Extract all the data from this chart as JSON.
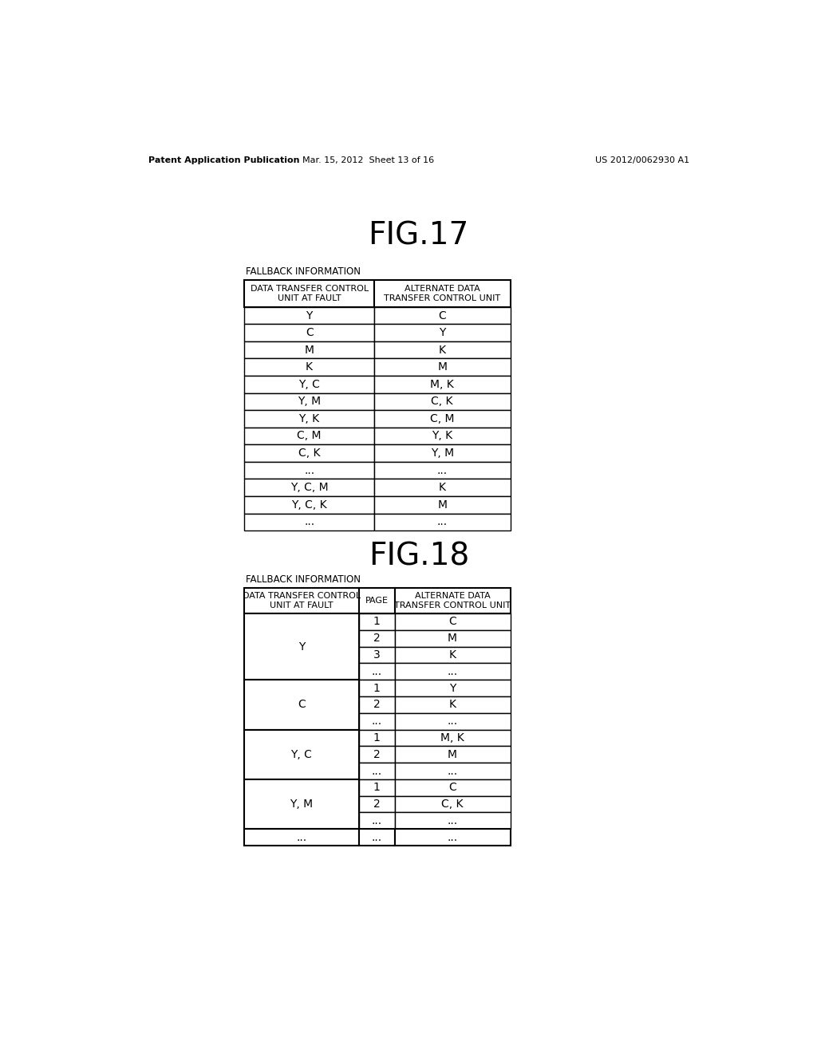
{
  "header_text_left": "Patent Application Publication",
  "header_text_mid": "Mar. 15, 2012  Sheet 13 of 16",
  "header_text_right": "US 2012/0062930 A1",
  "fig17_title": "FIG.17",
  "fig18_title": "FIG.18",
  "fallback_label": "FALLBACK INFORMATION",
  "fig17_col1_header": "DATA TRANSFER CONTROL\nUNIT AT FAULT",
  "fig17_col2_header": "ALTERNATE DATA\nTRANSFER CONTROL UNIT",
  "fig17_rows": [
    [
      "Y",
      "C"
    ],
    [
      "C",
      "Y"
    ],
    [
      "M",
      "K"
    ],
    [
      "K",
      "M"
    ],
    [
      "Y, C",
      "M, K"
    ],
    [
      "Y, M",
      "C, K"
    ],
    [
      "Y, K",
      "C, M"
    ],
    [
      "C, M",
      "Y, K"
    ],
    [
      "C, K",
      "Y, M"
    ],
    [
      "...",
      "..."
    ],
    [
      "Y, C, M",
      "K"
    ],
    [
      "Y, C, K",
      "M"
    ],
    [
      "...",
      "..."
    ]
  ],
  "fig18_col1_header": "DATA TRANSFER CONTROL\nUNIT AT FAULT",
  "fig18_col2_header": "PAGE",
  "fig18_col3_header": "ALTERNATE DATA\nTRANSFER CONTROL UNIT",
  "fig18_groups": [
    {
      "fault": "Y",
      "rows": [
        [
          "1",
          "C"
        ],
        [
          "2",
          "M"
        ],
        [
          "3",
          "K"
        ],
        [
          "...",
          "..."
        ]
      ]
    },
    {
      "fault": "C",
      "rows": [
        [
          "1",
          "Y"
        ],
        [
          "2",
          "K"
        ],
        [
          "...",
          "..."
        ]
      ]
    },
    {
      "fault": "Y, C",
      "rows": [
        [
          "1",
          "M, K"
        ],
        [
          "2",
          "M"
        ],
        [
          "...",
          "..."
        ]
      ]
    },
    {
      "fault": "Y, M",
      "rows": [
        [
          "1",
          "C"
        ],
        [
          "2",
          "C, K"
        ],
        [
          "...",
          "..."
        ]
      ]
    }
  ],
  "fig18_final_row": [
    "...",
    "...",
    "..."
  ],
  "bg_color": "#ffffff",
  "text_color": "#000000"
}
